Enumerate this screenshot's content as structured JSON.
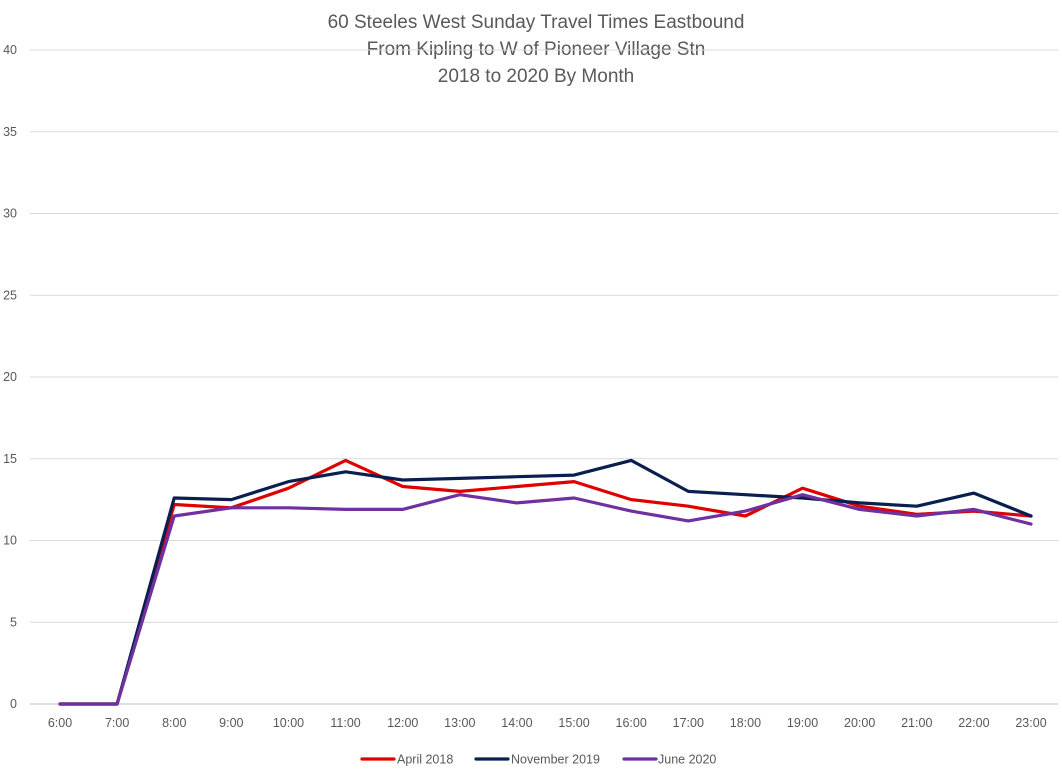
{
  "chart_data": {
    "type": "line",
    "title_lines": [
      "60 Steeles West Sunday Travel Times Eastbound",
      "From Kipling to W of Pioneer Village Stn",
      "2018 to 2020 By Month"
    ],
    "categories": [
      "6:00",
      "7:00",
      "8:00",
      "9:00",
      "10:00",
      "11:00",
      "12:00",
      "13:00",
      "14:00",
      "15:00",
      "16:00",
      "17:00",
      "18:00",
      "19:00",
      "20:00",
      "21:00",
      "22:00",
      "23:00"
    ],
    "ylim": [
      0,
      40
    ],
    "yticks": [
      "0",
      "5",
      "10",
      "15",
      "20",
      "25",
      "30",
      "35",
      "40"
    ],
    "grid": true,
    "legend_position": "bottom",
    "series": [
      {
        "name": "April 2018",
        "color": "#e00000",
        "values": [
          0,
          0,
          12.2,
          12.0,
          13.2,
          14.9,
          13.3,
          13.0,
          13.3,
          13.6,
          12.5,
          12.1,
          11.5,
          13.2,
          12.1,
          11.6,
          11.8,
          11.5
        ]
      },
      {
        "name": "November 2019",
        "color": "#0a1f4f",
        "values": [
          0,
          0,
          12.6,
          12.5,
          13.6,
          14.2,
          13.7,
          13.8,
          13.9,
          14.0,
          14.9,
          13.0,
          12.8,
          12.6,
          12.3,
          12.1,
          12.9,
          11.5
        ]
      },
      {
        "name": "June 2020",
        "color": "#7030a0",
        "values": [
          0,
          0,
          11.5,
          12.0,
          12.0,
          11.9,
          11.9,
          12.8,
          12.3,
          12.6,
          11.8,
          11.2,
          11.8,
          12.8,
          11.9,
          11.5,
          11.9,
          11.0
        ]
      }
    ]
  }
}
